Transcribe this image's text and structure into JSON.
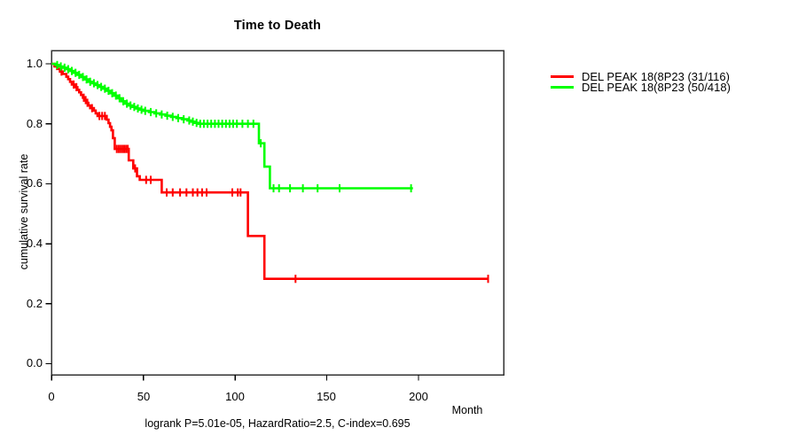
{
  "chart_data": {
    "type": "line",
    "subtype": "kaplan-meier-step-survival",
    "title": "Time to Death",
    "xlabel": "Month",
    "ylabel": "cumulative survival rate",
    "annotation": "logrank P=5.01e-05, HazardRatio=2.5, C-index=0.695",
    "xlim": [
      0,
      246
    ],
    "ylim": [
      0.0,
      1.04
    ],
    "x_ticks": [
      0,
      50,
      100,
      150,
      200
    ],
    "x_tick_labels": [
      "0",
      "50",
      "100",
      "150",
      "200"
    ],
    "y_ticks": [
      1.0,
      0.8,
      0.6,
      0.4,
      0.2,
      0.0
    ],
    "y_tick_labels": [
      "1.0",
      "0.8",
      "0.6",
      "0.4",
      "0.2",
      "0.0"
    ],
    "grid": false,
    "legend_position": "right-outside-top",
    "series": [
      {
        "name": "DEL PEAK 18(8P23 (31/116)",
        "color": "#ff0000",
        "end_month": 238.5,
        "steps": [
          [
            0,
            1.0
          ],
          [
            1.5,
            0.991
          ],
          [
            3,
            0.983
          ],
          [
            4.5,
            0.974
          ],
          [
            6,
            0.966
          ],
          [
            8,
            0.957
          ],
          [
            9,
            0.949
          ],
          [
            10,
            0.94
          ],
          [
            11,
            0.931
          ],
          [
            13,
            0.922
          ],
          [
            14,
            0.913
          ],
          [
            15,
            0.905
          ],
          [
            16,
            0.896
          ],
          [
            17,
            0.887
          ],
          [
            18,
            0.879
          ],
          [
            19,
            0.87
          ],
          [
            20,
            0.861
          ],
          [
            21,
            0.852
          ],
          [
            23,
            0.844
          ],
          [
            24,
            0.835
          ],
          [
            25,
            0.826
          ],
          [
            30,
            0.814
          ],
          [
            31,
            0.802
          ],
          [
            31.8,
            0.79
          ],
          [
            32.6,
            0.778
          ],
          [
            33.4,
            0.752
          ],
          [
            34.4,
            0.716
          ],
          [
            42,
            0.678
          ],
          [
            44.5,
            0.651
          ],
          [
            46.5,
            0.625
          ],
          [
            48,
            0.613
          ],
          [
            60,
            0.571
          ],
          [
            107,
            0.426
          ],
          [
            116,
            0.283
          ]
        ],
        "censor_marks": [
          [
            5.3,
            0.974
          ],
          [
            12,
            0.931
          ],
          [
            13.5,
            0.922
          ],
          [
            17.5,
            0.887
          ],
          [
            18.5,
            0.879
          ],
          [
            19.5,
            0.87
          ],
          [
            22,
            0.852
          ],
          [
            26,
            0.826
          ],
          [
            27.5,
            0.826
          ],
          [
            29,
            0.826
          ],
          [
            35.5,
            0.716
          ],
          [
            36.5,
            0.716
          ],
          [
            37.5,
            0.716
          ],
          [
            38.5,
            0.716
          ],
          [
            39.5,
            0.716
          ],
          [
            40.5,
            0.716
          ],
          [
            41.5,
            0.716
          ],
          [
            45.5,
            0.651
          ],
          [
            51.5,
            0.613
          ],
          [
            54,
            0.613
          ],
          [
            62.7,
            0.571
          ],
          [
            66,
            0.571
          ],
          [
            70,
            0.571
          ],
          [
            73.5,
            0.571
          ],
          [
            77,
            0.571
          ],
          [
            79.5,
            0.571
          ],
          [
            82,
            0.571
          ],
          [
            84.5,
            0.571
          ],
          [
            98.5,
            0.571
          ],
          [
            101.5,
            0.571
          ],
          [
            103,
            0.571
          ],
          [
            133,
            0.283
          ],
          [
            238,
            0.283
          ]
        ]
      },
      {
        "name": "DEL PEAK 18(8P23 (50/418)",
        "color": "#00ff00",
        "end_month": 197,
        "steps": [
          [
            0,
            1.0
          ],
          [
            2,
            0.996
          ],
          [
            4,
            0.991
          ],
          [
            6,
            0.987
          ],
          [
            8,
            0.982
          ],
          [
            10,
            0.976
          ],
          [
            12,
            0.97
          ],
          [
            14,
            0.963
          ],
          [
            16,
            0.956
          ],
          [
            18,
            0.948
          ],
          [
            20,
            0.94
          ],
          [
            22,
            0.935
          ],
          [
            24,
            0.929
          ],
          [
            26,
            0.923
          ],
          [
            28,
            0.917
          ],
          [
            30,
            0.91
          ],
          [
            32,
            0.902
          ],
          [
            34,
            0.894
          ],
          [
            36,
            0.885
          ],
          [
            38,
            0.875
          ],
          [
            40,
            0.867
          ],
          [
            42,
            0.861
          ],
          [
            44,
            0.856
          ],
          [
            46,
            0.851
          ],
          [
            48,
            0.847
          ],
          [
            50,
            0.843
          ],
          [
            53,
            0.839
          ],
          [
            56,
            0.835
          ],
          [
            59,
            0.831
          ],
          [
            62,
            0.827
          ],
          [
            65,
            0.823
          ],
          [
            68,
            0.819
          ],
          [
            71,
            0.815
          ],
          [
            74,
            0.811
          ],
          [
            76,
            0.807
          ],
          [
            78,
            0.803
          ],
          [
            80,
            0.8
          ],
          [
            113,
            0.735
          ],
          [
            116,
            0.657
          ],
          [
            119,
            0.585
          ]
        ],
        "censor_marks": [
          [
            3,
            0.996
          ],
          [
            5,
            0.991
          ],
          [
            7,
            0.987
          ],
          [
            9,
            0.982
          ],
          [
            11,
            0.976
          ],
          [
            13,
            0.97
          ],
          [
            15,
            0.963
          ],
          [
            17,
            0.956
          ],
          [
            19,
            0.948
          ],
          [
            21,
            0.94
          ],
          [
            23,
            0.935
          ],
          [
            25,
            0.929
          ],
          [
            27,
            0.923
          ],
          [
            29,
            0.917
          ],
          [
            31,
            0.91
          ],
          [
            33,
            0.902
          ],
          [
            35,
            0.894
          ],
          [
            37,
            0.885
          ],
          [
            39,
            0.875
          ],
          [
            41,
            0.867
          ],
          [
            43,
            0.861
          ],
          [
            45,
            0.856
          ],
          [
            47,
            0.851
          ],
          [
            49,
            0.847
          ],
          [
            51,
            0.843
          ],
          [
            54,
            0.839
          ],
          [
            57,
            0.835
          ],
          [
            60,
            0.831
          ],
          [
            63,
            0.827
          ],
          [
            66,
            0.823
          ],
          [
            69,
            0.819
          ],
          [
            72,
            0.815
          ],
          [
            75,
            0.811
          ],
          [
            77,
            0.807
          ],
          [
            79,
            0.803
          ],
          [
            81,
            0.8
          ],
          [
            83,
            0.8
          ],
          [
            85,
            0.8
          ],
          [
            87,
            0.8
          ],
          [
            89,
            0.8
          ],
          [
            91,
            0.8
          ],
          [
            93,
            0.8
          ],
          [
            95,
            0.8
          ],
          [
            97,
            0.8
          ],
          [
            99,
            0.8
          ],
          [
            101,
            0.8
          ],
          [
            104,
            0.8
          ],
          [
            107,
            0.8
          ],
          [
            110,
            0.8
          ],
          [
            114,
            0.735
          ],
          [
            121,
            0.585
          ],
          [
            124,
            0.585
          ],
          [
            130,
            0.585
          ],
          [
            137,
            0.585
          ],
          [
            145,
            0.585
          ],
          [
            157,
            0.585
          ],
          [
            196,
            0.585
          ]
        ]
      }
    ]
  }
}
